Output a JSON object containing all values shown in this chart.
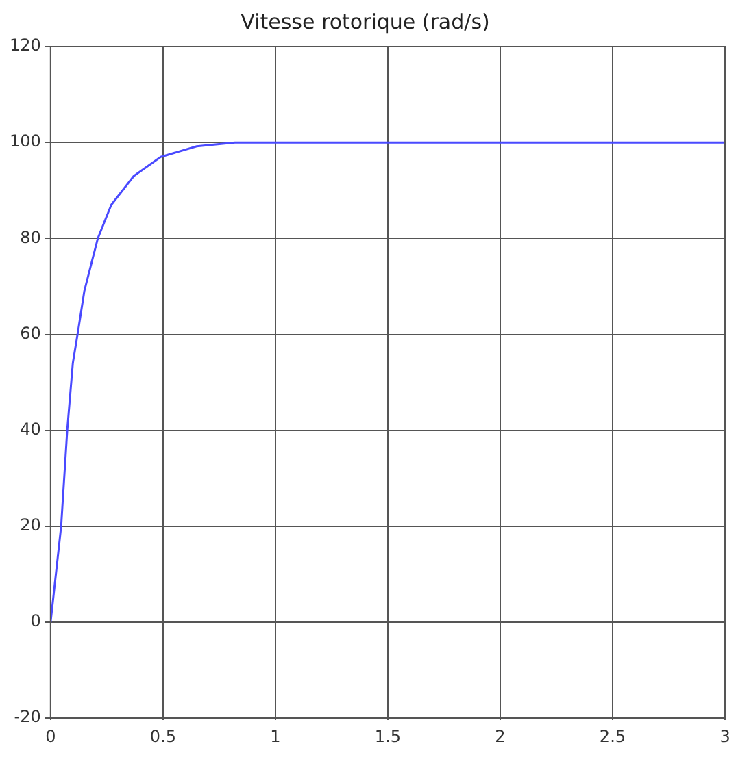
{
  "chart_data": {
    "type": "line",
    "title": "Vitesse rotorique (rad/s)",
    "series": [
      {
        "color": "#4a4aff",
        "x": [
          0,
          0.047,
          0.074,
          0.099,
          0.12,
          0.15,
          0.21,
          0.27,
          0.37,
          0.49,
          0.65,
          0.82,
          1.5,
          2,
          3
        ],
        "values": [
          0,
          20,
          40,
          54,
          60,
          69,
          80,
          87,
          93,
          97,
          99.2,
          100,
          100,
          100,
          100
        ]
      }
    ],
    "xlim": [
      0,
      3
    ],
    "xticks": [
      0,
      0.5,
      1,
      1.5,
      2,
      2.5,
      3
    ],
    "ylim": [
      -20,
      120
    ],
    "yticks": [
      -20,
      0,
      20,
      40,
      60,
      80,
      100,
      120
    ],
    "grid": true,
    "legend": false,
    "marker": "none",
    "line_style": "solid"
  }
}
